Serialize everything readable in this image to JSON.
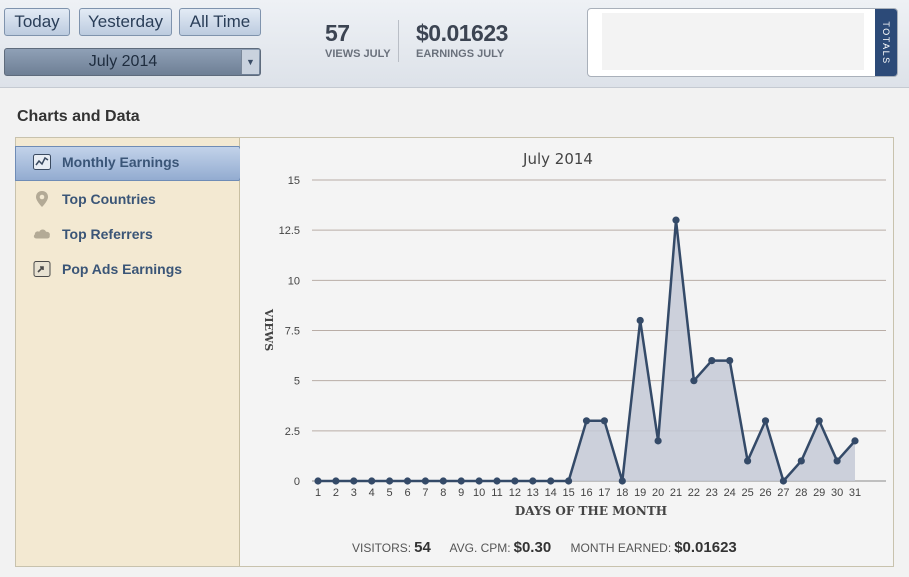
{
  "toolbar": {
    "today_label": "Today",
    "yesterday_label": "Yesterday",
    "alltime_label": "All Time",
    "month_selected": "July 2014"
  },
  "stats": {
    "views_value": "57",
    "views_label": "VIEWS JULY",
    "earnings_value": "$0.01623",
    "earnings_label": "EARNINGS JULY"
  },
  "totals": {
    "tab_label": "TOTALS"
  },
  "section_title": "Charts and Data",
  "sidebar": {
    "items": [
      {
        "label": "Monthly Earnings",
        "icon": "chart-icon",
        "active": true
      },
      {
        "label": "Top Countries",
        "icon": "map-pin-icon",
        "active": false
      },
      {
        "label": "Top Referrers",
        "icon": "cloud-icon",
        "active": false
      },
      {
        "label": "Pop Ads Earnings",
        "icon": "popup-icon",
        "active": false
      }
    ]
  },
  "colors": {
    "accent": "#2c4a78",
    "line": "#344a68",
    "area": "#c4c9d6",
    "sidebar_bg": "#f3e9d2",
    "active_item": "#a9bfdf"
  },
  "chart_data": {
    "type": "area",
    "title": "July 2014",
    "xlabel": "DAYS OF THE MONTH",
    "ylabel": "VIEWS",
    "ylim": [
      0,
      15
    ],
    "yticks": [
      "0",
      "2.5",
      "5",
      "7.5",
      "10",
      "12.5",
      "15"
    ],
    "categories": [
      "1",
      "2",
      "3",
      "4",
      "5",
      "6",
      "7",
      "8",
      "9",
      "10",
      "11",
      "12",
      "13",
      "14",
      "15",
      "16",
      "17",
      "18",
      "19",
      "20",
      "21",
      "22",
      "23",
      "24",
      "25",
      "26",
      "27",
      "28",
      "29",
      "30",
      "31"
    ],
    "series": [
      {
        "values": [
          0,
          0,
          0,
          0,
          0,
          0,
          0,
          0,
          0,
          0,
          0,
          0,
          0,
          0,
          0,
          3,
          3,
          0,
          8,
          2,
          13,
          5,
          6,
          6,
          1,
          3,
          0,
          1,
          3,
          1,
          2
        ]
      }
    ],
    "grid": true,
    "legend": "none"
  },
  "footer": {
    "visitors_label": "VISITORS:",
    "visitors_value": "54",
    "cpm_label": "AVG. CPM:",
    "cpm_value": "$0.30",
    "month_label": "MONTH EARNED:",
    "month_value": "$0.01623"
  }
}
